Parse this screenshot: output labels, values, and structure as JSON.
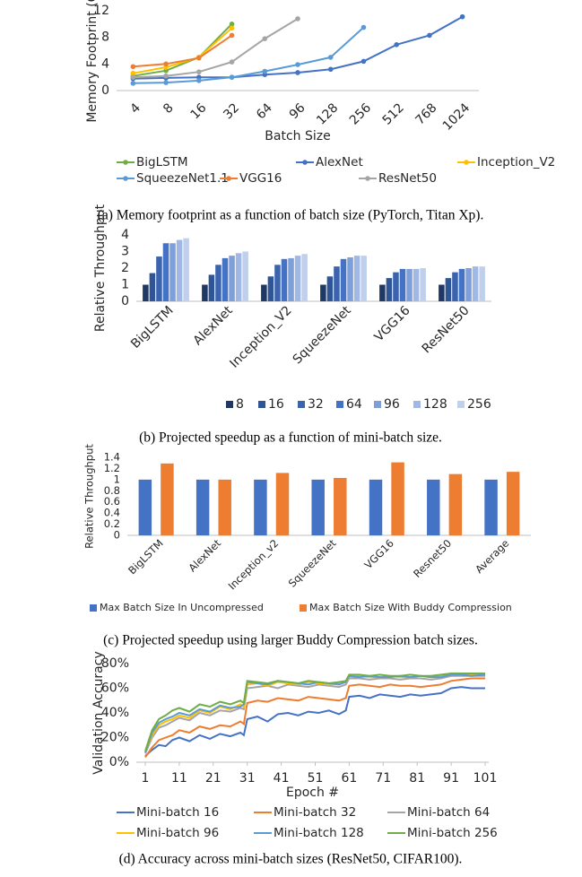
{
  "chart_data": [
    {
      "type": "line",
      "caption": "(a) Memory footprint as a function of batch size (PyTorch, Titan Xp).",
      "x_label": "Batch Size",
      "y_label": "Memory Footprint (GB)",
      "markers": true,
      "grid": false,
      "categories": [
        "4",
        "8",
        "16",
        "32",
        "64",
        "96",
        "128",
        "256",
        "512",
        "768",
        "1024"
      ],
      "ylim": [
        0,
        12
      ],
      "yticks": [
        0,
        4,
        8,
        12
      ],
      "series": [
        {
          "name": "BigLSTM",
          "color": "#70ad47",
          "values": [
            2.2,
            3.0,
            5.0,
            10.0,
            null,
            null,
            null,
            null,
            null,
            null,
            null
          ]
        },
        {
          "name": "AlexNet",
          "color": "#4472c4",
          "values": [
            1.8,
            1.9,
            2.0,
            2.0,
            2.4,
            2.7,
            3.2,
            4.4,
            6.9,
            8.3,
            11.1
          ]
        },
        {
          "name": "Inception_V2",
          "color": "#ffc000",
          "values": [
            2.6,
            3.5,
            5.0,
            9.4,
            null,
            null,
            null,
            null,
            null,
            null,
            null
          ]
        },
        {
          "name": "SqueezeNet1.1",
          "color": "#5b9bd5",
          "values": [
            1.1,
            1.2,
            1.5,
            2.0,
            2.9,
            3.9,
            5.0,
            9.5,
            null,
            null,
            null
          ]
        },
        {
          "name": "VGG16",
          "color": "#ed7d31",
          "values": [
            3.6,
            4.0,
            4.9,
            8.3,
            null,
            null,
            null,
            null,
            null,
            null,
            null
          ]
        },
        {
          "name": "ResNet50",
          "color": "#a5a5a5",
          "values": [
            2.0,
            2.2,
            2.8,
            4.3,
            7.8,
            10.8,
            null,
            null,
            null,
            null,
            null
          ]
        }
      ]
    },
    {
      "type": "bar",
      "caption": "(b) Projected speedup as a function of mini-batch size.",
      "y_label": "Relative Throughput",
      "grid": false,
      "categories": [
        "BigLSTM",
        "AlexNet",
        "Inception_V2",
        "SqueezeNet",
        "VGG16",
        "ResNet50"
      ],
      "ylim": [
        0,
        4
      ],
      "yticks": [
        0,
        1,
        2,
        3,
        4
      ],
      "series": [
        {
          "name": "8",
          "color": "#203864",
          "values": [
            1,
            1,
            1,
            1,
            1,
            1
          ]
        },
        {
          "name": "16",
          "color": "#2f5597",
          "values": [
            1.7,
            1.6,
            1.5,
            1.5,
            1.4,
            1.4
          ]
        },
        {
          "name": "32",
          "color": "#3c64ae",
          "values": [
            2.7,
            2.2,
            2.2,
            2.1,
            1.75,
            1.75
          ]
        },
        {
          "name": "64",
          "color": "#4472c4",
          "values": [
            3.5,
            2.6,
            2.55,
            2.55,
            1.95,
            1.95
          ]
        },
        {
          "name": "96",
          "color": "#7f9fd9",
          "values": [
            3.5,
            2.75,
            2.6,
            2.65,
            1.95,
            2.0
          ]
        },
        {
          "name": "128",
          "color": "#a0b8e3",
          "values": [
            3.7,
            2.9,
            2.75,
            2.75,
            1.95,
            2.1
          ]
        },
        {
          "name": "256",
          "color": "#bfcfec",
          "values": [
            3.8,
            3.0,
            2.85,
            2.75,
            2.0,
            2.1
          ]
        }
      ]
    },
    {
      "type": "bar",
      "caption": "(c) Projected speedup using larger Buddy Compression batch sizes.",
      "y_label": "Relative Throughput",
      "grid": false,
      "categories": [
        "BigLSTM",
        "AlexNet",
        "Inception_v2",
        "SqueezeNet",
        "VGG16",
        "Resnet50",
        "Average"
      ],
      "ylim": [
        0,
        1.4
      ],
      "yticks": [
        0,
        0.2,
        0.4,
        0.6,
        0.8,
        1,
        1.2,
        1.4
      ],
      "series": [
        {
          "name": "Max Batch Size In Uncompressed",
          "color": "#4472c4",
          "values": [
            1,
            1,
            1,
            1,
            1,
            1,
            1
          ]
        },
        {
          "name": "Max Batch Size With Buddy Compression",
          "color": "#ed7d31",
          "values": [
            1.29,
            1.0,
            1.12,
            1.03,
            1.31,
            1.1,
            1.14
          ]
        }
      ]
    },
    {
      "type": "line",
      "caption": "(d) Accuracy across mini-batch sizes (ResNet50, CIFAR100).",
      "x_label": "Epoch #",
      "y_label": "Validation Accuracy",
      "markers": false,
      "grid": false,
      "x": [
        1,
        3,
        5,
        7,
        9,
        11,
        14,
        17,
        20,
        23,
        26,
        29,
        30,
        31,
        34,
        37,
        40,
        43,
        46,
        49,
        52,
        55,
        58,
        60,
        61,
        64,
        67,
        70,
        73,
        76,
        79,
        82,
        85,
        88,
        91,
        94,
        97,
        101
      ],
      "xlim": [
        1,
        101
      ],
      "xticks": [
        1,
        11,
        21,
        31,
        41,
        51,
        61,
        71,
        81,
        91,
        101
      ],
      "ylim": [
        0,
        80
      ],
      "yticks": [
        {
          "value": 0,
          "label": "0%"
        },
        {
          "value": 20,
          "label": "20%"
        },
        {
          "value": 40,
          "label": "40%"
        },
        {
          "value": 60,
          "label": "60%"
        },
        {
          "value": 80,
          "label": "80%"
        }
      ],
      "series": [
        {
          "name": "Mini-batch 16",
          "color": "#4472c4",
          "values": [
            5,
            10,
            14,
            13,
            18,
            20,
            17,
            22,
            19,
            23,
            21,
            24,
            22,
            35,
            37,
            33,
            39,
            40,
            38,
            41,
            40,
            42,
            39,
            42,
            53,
            54,
            52,
            55,
            54,
            53,
            55,
            54,
            55,
            56,
            60,
            61,
            60,
            60
          ]
        },
        {
          "name": "Mini-batch 32",
          "color": "#ed7d31",
          "values": [
            4,
            12,
            18,
            20,
            22,
            26,
            24,
            29,
            27,
            30,
            29,
            33,
            31,
            48,
            50,
            49,
            52,
            51,
            50,
            53,
            52,
            51,
            50,
            52,
            62,
            63,
            62,
            61,
            63,
            62,
            62,
            61,
            62,
            63,
            66,
            67,
            68,
            68
          ]
        },
        {
          "name": "Mini-batch 64",
          "color": "#a5a5a5",
          "values": [
            7,
            20,
            28,
            30,
            33,
            36,
            34,
            40,
            38,
            42,
            41,
            44,
            43,
            60,
            61,
            62,
            60,
            63,
            62,
            61,
            63,
            62,
            61,
            63,
            68,
            68,
            67,
            68,
            68,
            67,
            68,
            68,
            67,
            68,
            70,
            70,
            70,
            70
          ]
        },
        {
          "name": "Mini-batch 96",
          "color": "#ffc000",
          "values": [
            8,
            22,
            30,
            33,
            35,
            38,
            36,
            42,
            40,
            45,
            43,
            47,
            45,
            63,
            64,
            62,
            65,
            64,
            63,
            65,
            64,
            63,
            64,
            65,
            69,
            70,
            69,
            69,
            70,
            69,
            69,
            70,
            69,
            70,
            72,
            72,
            71,
            72
          ]
        },
        {
          "name": "Mini-batch 128",
          "color": "#5b9bd5",
          "values": [
            8,
            24,
            32,
            35,
            37,
            40,
            38,
            43,
            41,
            46,
            44,
            45,
            47,
            65,
            64,
            63,
            66,
            65,
            64,
            63,
            65,
            64,
            63,
            65,
            70,
            69,
            70,
            69,
            69,
            70,
            69,
            70,
            69,
            69,
            71,
            71,
            70,
            71
          ]
        },
        {
          "name": "Mini-batch 256",
          "color": "#70ad47",
          "values": [
            9,
            26,
            35,
            38,
            42,
            44,
            41,
            47,
            45,
            49,
            47,
            50,
            48,
            66,
            65,
            64,
            66,
            65,
            64,
            66,
            65,
            64,
            65,
            66,
            71,
            71,
            70,
            71,
            70,
            70,
            71,
            70,
            70,
            71,
            72,
            72,
            72,
            72
          ]
        }
      ]
    }
  ]
}
